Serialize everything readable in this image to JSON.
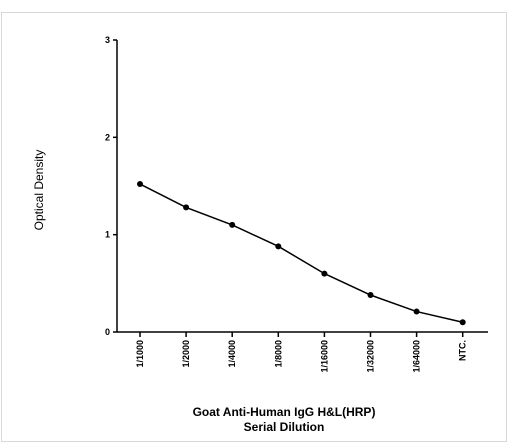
{
  "chart_data": {
    "type": "line",
    "title": "",
    "xlabel": [
      "Goat Anti-Human IgG H&L(HRP)",
      "Serial Dilution"
    ],
    "ylabel": "Optical Density",
    "ylim": [
      0,
      3
    ],
    "yticks": [
      "0",
      "1",
      "2",
      "3"
    ],
    "categories": [
      "1/1000",
      "1/2000",
      "1/4000",
      "1/8000",
      "1/16000",
      "1/32000",
      "1/64000",
      "NTC."
    ],
    "series": [
      {
        "values": [
          1.52,
          1.28,
          1.1,
          0.88,
          0.6,
          0.38,
          0.21,
          0.1
        ]
      }
    ],
    "grid": false,
    "legend": "none",
    "colors": {
      "line": "#000000",
      "marker": "#000000",
      "axis": "#000000"
    }
  }
}
